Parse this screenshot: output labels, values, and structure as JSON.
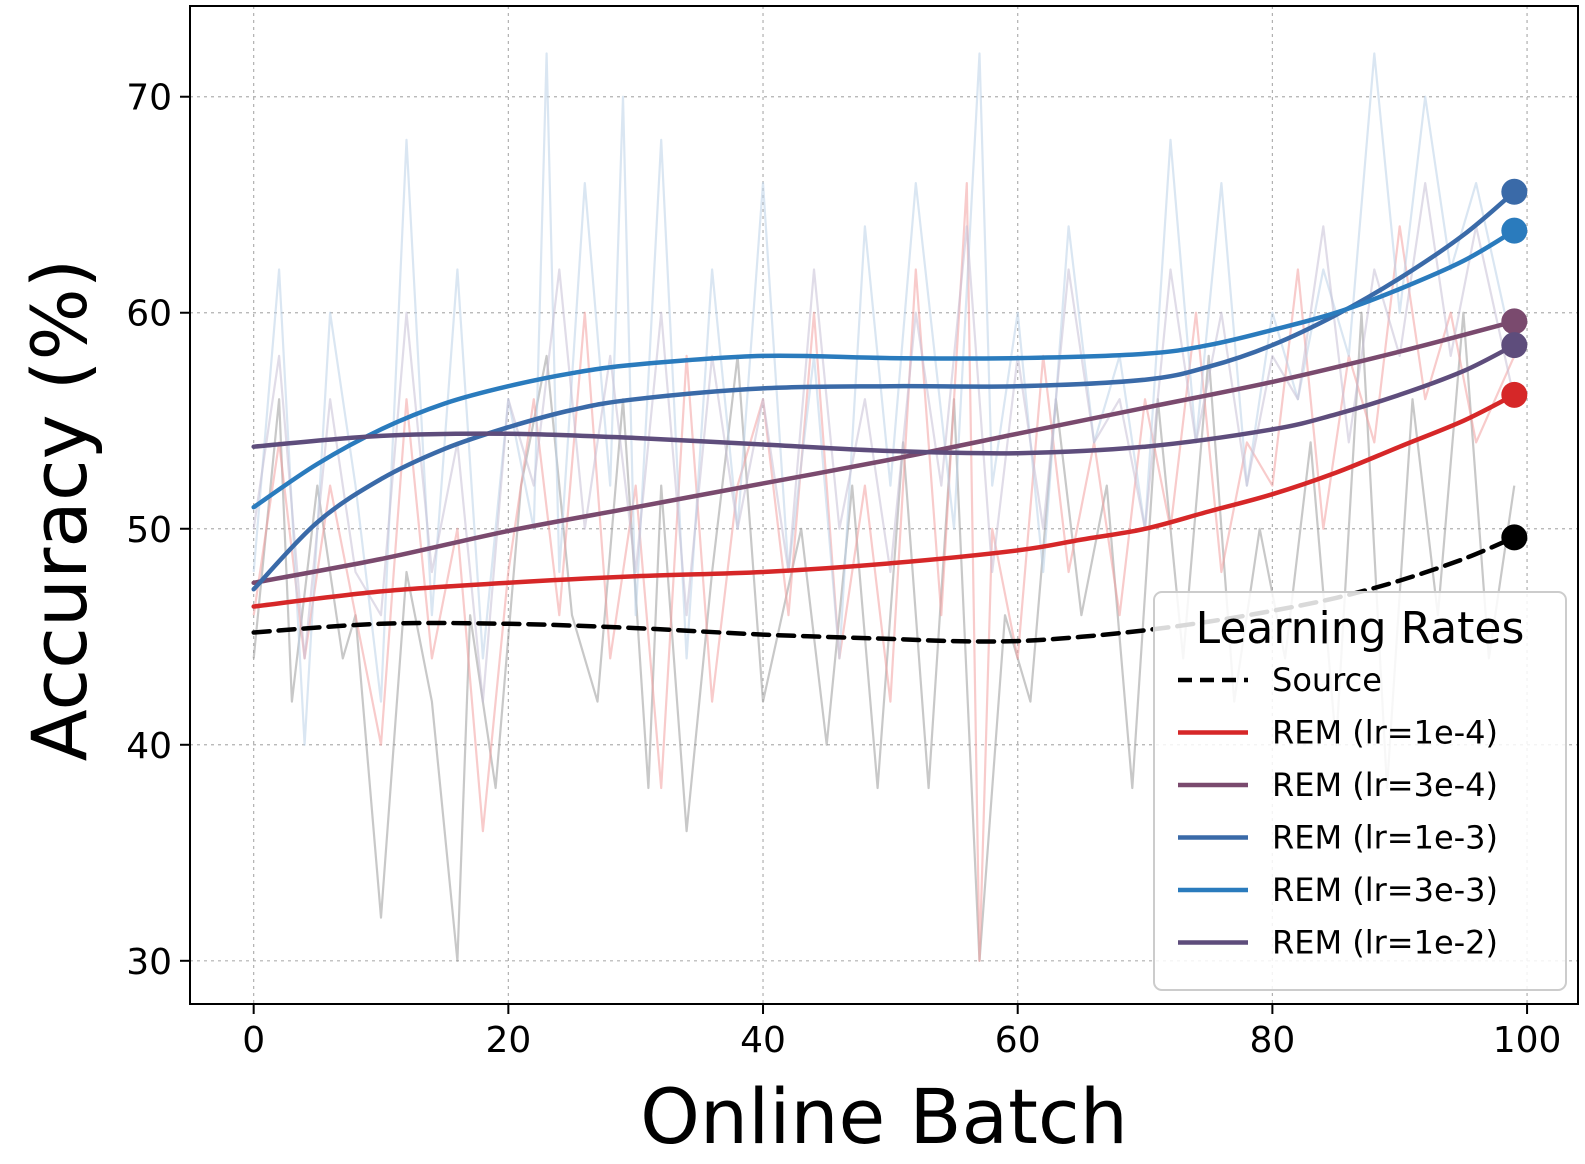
{
  "chart_data": {
    "type": "line",
    "xlabel": "Online Batch",
    "ylabel": "Accuracy (%)",
    "xlim": [
      -5,
      104
    ],
    "ylim": [
      28,
      74.2
    ],
    "xticks": [
      0,
      20,
      40,
      60,
      80,
      100
    ],
    "yticks": [
      30,
      40,
      50,
      60,
      70
    ],
    "grid": true,
    "grid_style": "dotted",
    "legend": {
      "title": "Learning Rates",
      "position": "lower-right"
    },
    "series": [
      {
        "name": "Source",
        "color": "#000000",
        "style": "dashed",
        "x": [
          0,
          10,
          20,
          30,
          40,
          50,
          55,
          60,
          65,
          70,
          75,
          80,
          85,
          90,
          95,
          99
        ],
        "y": [
          45.2,
          45.6,
          45.6,
          45.4,
          45.1,
          44.9,
          44.8,
          44.8,
          45.0,
          45.3,
          45.7,
          46.2,
          46.8,
          47.6,
          48.6,
          49.6
        ]
      },
      {
        "name": "REM (lr=1e-4)",
        "color": "#d62728",
        "style": "solid",
        "x": [
          0,
          10,
          20,
          30,
          40,
          50,
          60,
          65,
          70,
          75,
          80,
          85,
          90,
          95,
          99
        ],
        "y": [
          46.4,
          47.1,
          47.5,
          47.8,
          48.0,
          48.4,
          49.0,
          49.5,
          50.0,
          50.8,
          51.6,
          52.6,
          53.8,
          55.0,
          56.2
        ]
      },
      {
        "name": "REM (lr=3e-4)",
        "color": "#7a4a6e",
        "style": "solid",
        "x": [
          0,
          10,
          20,
          30,
          40,
          50,
          60,
          70,
          80,
          90,
          99
        ],
        "y": [
          47.5,
          48.6,
          49.9,
          51.0,
          52.1,
          53.2,
          54.4,
          55.6,
          56.8,
          58.2,
          59.6
        ]
      },
      {
        "name": "REM (lr=1e-3)",
        "color": "#3a6aa8",
        "style": "solid",
        "x": [
          0,
          5,
          10,
          15,
          20,
          25,
          30,
          40,
          50,
          60,
          70,
          75,
          80,
          85,
          90,
          95,
          99
        ],
        "y": [
          47.2,
          50.3,
          52.3,
          53.7,
          54.7,
          55.5,
          56.0,
          56.5,
          56.6,
          56.6,
          56.9,
          57.5,
          58.5,
          59.9,
          61.6,
          63.6,
          65.6
        ]
      },
      {
        "name": "REM (lr=3e-3)",
        "color": "#2a7bbd",
        "style": "solid",
        "x": [
          0,
          5,
          10,
          15,
          20,
          25,
          30,
          40,
          50,
          60,
          70,
          75,
          80,
          85,
          90,
          95,
          99
        ],
        "y": [
          51.0,
          53.0,
          54.6,
          55.8,
          56.6,
          57.2,
          57.6,
          58.0,
          57.9,
          57.9,
          58.1,
          58.5,
          59.2,
          60.0,
          61.1,
          62.4,
          63.8
        ]
      },
      {
        "name": "REM (lr=1e-2)",
        "color": "#5e4d7c",
        "style": "solid",
        "x": [
          0,
          10,
          20,
          30,
          40,
          50,
          60,
          70,
          80,
          85,
          90,
          95,
          99
        ],
        "y": [
          53.8,
          54.3,
          54.4,
          54.2,
          53.9,
          53.6,
          53.5,
          53.8,
          54.6,
          55.3,
          56.2,
          57.3,
          58.5
        ]
      }
    ],
    "raw_series": [
      {
        "color": "#9a9a9a",
        "x": [
          0,
          2,
          3,
          5,
          7,
          8,
          10,
          12,
          14,
          16,
          17,
          19,
          21,
          23,
          25,
          27,
          29,
          31,
          32,
          34,
          36,
          38,
          40,
          43,
          45,
          47,
          49,
          51,
          53,
          55,
          57,
          59,
          61,
          63,
          65,
          67,
          69,
          71,
          73,
          75,
          77,
          79,
          81,
          83,
          85,
          87,
          89,
          91,
          93,
          95,
          97,
          99
        ],
        "y": [
          44,
          56,
          42,
          52,
          44,
          46,
          32,
          48,
          42,
          30,
          46,
          38,
          52,
          58,
          46,
          42,
          56,
          38,
          52,
          36,
          48,
          58,
          42,
          50,
          40,
          52,
          38,
          54,
          38,
          56,
          30,
          46,
          42,
          56,
          46,
          52,
          38,
          56,
          44,
          58,
          42,
          50,
          44,
          54,
          40,
          60,
          38,
          56,
          46,
          60,
          44,
          52
        ]
      },
      {
        "color": "#f2a0a0",
        "x": [
          0,
          2,
          4,
          6,
          8,
          10,
          12,
          14,
          16,
          18,
          20,
          22,
          24,
          26,
          28,
          30,
          32,
          34,
          36,
          38,
          40,
          42,
          44,
          46,
          48,
          50,
          52,
          54,
          56,
          57,
          58,
          60,
          62,
          64,
          66,
          68,
          70,
          72,
          74,
          76,
          78,
          80,
          82,
          84,
          86,
          88,
          90,
          92,
          94,
          96,
          99
        ],
        "y": [
          46,
          54,
          44,
          52,
          46,
          40,
          56,
          44,
          50,
          36,
          48,
          56,
          46,
          60,
          44,
          52,
          38,
          58,
          42,
          52,
          56,
          46,
          60,
          44,
          52,
          42,
          62,
          46,
          66,
          30,
          50,
          44,
          58,
          48,
          54,
          46,
          56,
          50,
          60,
          48,
          54,
          52,
          62,
          50,
          58,
          54,
          64,
          56,
          60,
          54,
          58
        ]
      },
      {
        "color": "#bcd2e8",
        "x": [
          0,
          2,
          4,
          6,
          8,
          10,
          12,
          14,
          16,
          18,
          20,
          22,
          23,
          24,
          26,
          28,
          29,
          30,
          32,
          34,
          36,
          38,
          40,
          42,
          44,
          46,
          48,
          50,
          52,
          55,
          57,
          58,
          60,
          62,
          64,
          66,
          68,
          70,
          72,
          74,
          76,
          78,
          80,
          82,
          84,
          86,
          88,
          90,
          92,
          94,
          96,
          99
        ],
        "y": [
          48,
          62,
          40,
          60,
          52,
          42,
          68,
          46,
          62,
          44,
          56,
          50,
          72,
          48,
          66,
          52,
          70,
          46,
          68,
          44,
          62,
          50,
          66,
          48,
          58,
          44,
          64,
          52,
          66,
          50,
          72,
          52,
          60,
          48,
          64,
          54,
          58,
          50,
          68,
          54,
          66,
          52,
          60,
          56,
          62,
          58,
          72,
          60,
          70,
          62,
          66,
          58
        ]
      },
      {
        "color": "#c6c0d6",
        "x": [
          0,
          2,
          4,
          6,
          8,
          10,
          12,
          14,
          16,
          18,
          20,
          22,
          24,
          26,
          28,
          30,
          32,
          34,
          36,
          38,
          40,
          42,
          44,
          46,
          48,
          50,
          52,
          54,
          56,
          58,
          60,
          62,
          64,
          66,
          68,
          70,
          72,
          74,
          76,
          78,
          80,
          82,
          84,
          86,
          88,
          90,
          92,
          94,
          96,
          99
        ],
        "y": [
          50,
          58,
          44,
          56,
          48,
          46,
          60,
          48,
          54,
          42,
          56,
          52,
          62,
          50,
          58,
          48,
          60,
          46,
          58,
          50,
          56,
          48,
          62,
          50,
          56,
          48,
          60,
          52,
          64,
          48,
          58,
          50,
          62,
          54,
          56,
          50,
          62,
          54,
          60,
          52,
          58,
          56,
          64,
          54,
          62,
          58,
          66,
          58,
          64,
          56
        ]
      }
    ]
  }
}
